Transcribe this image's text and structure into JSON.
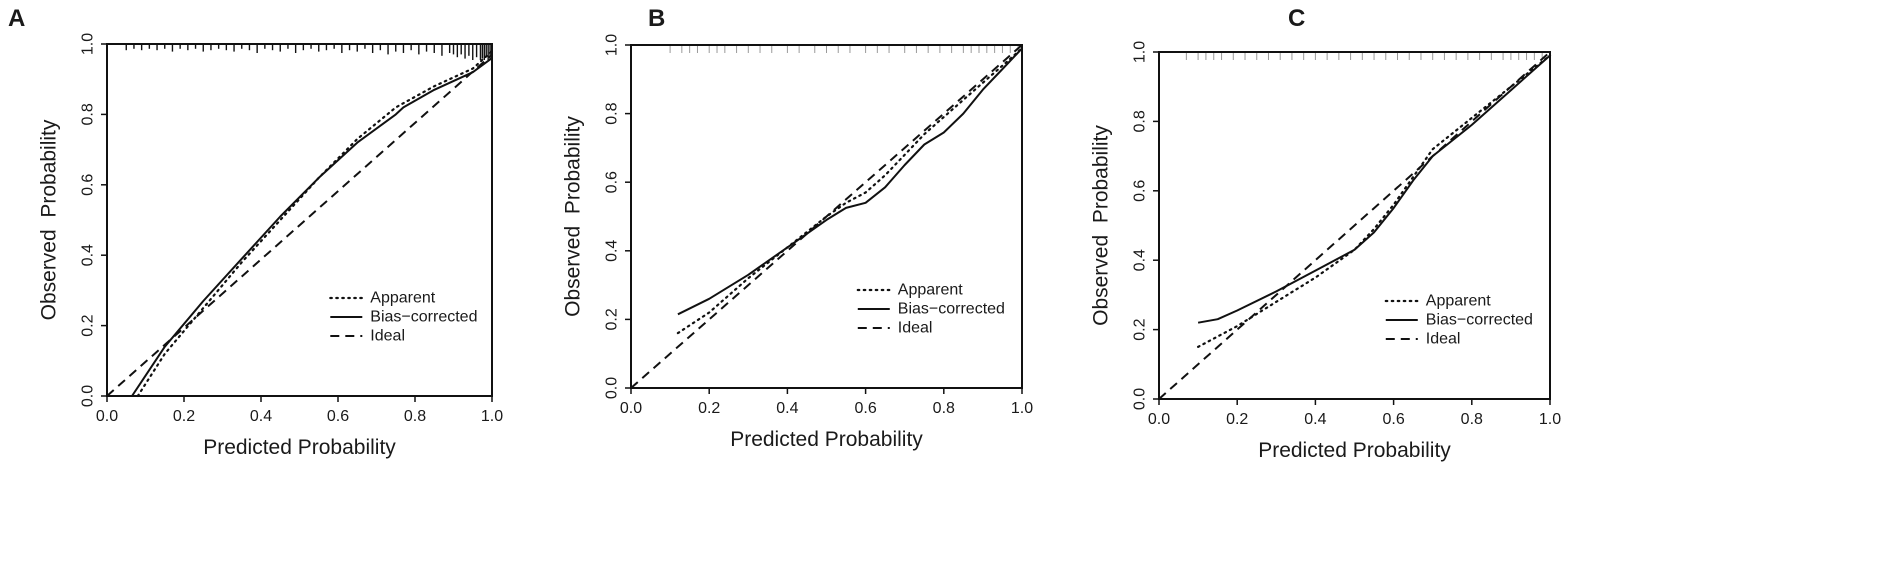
{
  "figure": {
    "panel_letters": [
      "A",
      "B",
      "C"
    ]
  },
  "chart_data": [
    {
      "type": "line",
      "panel": "A",
      "xlabel": "Predicted Probability",
      "ylabel": "Observed  Probability",
      "xlim": [
        0,
        1
      ],
      "ylim": [
        0,
        1
      ],
      "xticks": [
        "0.0",
        "0.2",
        "0.4",
        "0.6",
        "0.8",
        "1.0"
      ],
      "yticks": [
        "0.0",
        "0.2",
        "0.4",
        "0.6",
        "0.8",
        "1.0"
      ],
      "legend": {
        "position": "bottom-right",
        "entries": [
          "Apparent",
          "Bias−corrected",
          "Ideal"
        ]
      },
      "series": [
        {
          "name": "Apparent",
          "style": "dotted",
          "x": [
            0.08,
            0.15,
            0.25,
            0.35,
            0.45,
            0.55,
            0.65,
            0.75,
            0.85,
            0.95,
            1.0
          ],
          "y": [
            0.0,
            0.12,
            0.25,
            0.38,
            0.5,
            0.62,
            0.73,
            0.82,
            0.88,
            0.93,
            0.98
          ]
        },
        {
          "name": "Bias−corrected",
          "style": "solid",
          "x": [
            0.065,
            0.15,
            0.25,
            0.35,
            0.45,
            0.55,
            0.65,
            0.75,
            0.77,
            0.85,
            0.95,
            1.0
          ],
          "y": [
            0.0,
            0.14,
            0.27,
            0.39,
            0.51,
            0.62,
            0.72,
            0.8,
            0.82,
            0.87,
            0.92,
            0.96
          ]
        },
        {
          "name": "Ideal",
          "style": "dashed",
          "x": [
            0.0,
            1.0
          ],
          "y": [
            0.0,
            0.97
          ]
        }
      ],
      "rug": {
        "style": "dense",
        "x": [
          0.05,
          0.07,
          0.09,
          0.11,
          0.13,
          0.15,
          0.17,
          0.19,
          0.21,
          0.23,
          0.25,
          0.27,
          0.29,
          0.31,
          0.33,
          0.35,
          0.37,
          0.39,
          0.41,
          0.43,
          0.45,
          0.47,
          0.49,
          0.51,
          0.53,
          0.55,
          0.57,
          0.59,
          0.61,
          0.63,
          0.65,
          0.67,
          0.69,
          0.71,
          0.73,
          0.75,
          0.77,
          0.79,
          0.81,
          0.83,
          0.85,
          0.87,
          0.89,
          0.9,
          0.91,
          0.92,
          0.93,
          0.94,
          0.95,
          0.96,
          0.97,
          0.975,
          0.98,
          0.985,
          0.99,
          0.995
        ],
        "h": [
          0.3,
          0.2,
          0.3,
          0.2,
          0.3,
          0.2,
          0.4,
          0.2,
          0.3,
          0.2,
          0.4,
          0.3,
          0.2,
          0.3,
          0.4,
          0.2,
          0.3,
          0.5,
          0.2,
          0.3,
          0.4,
          0.2,
          0.5,
          0.3,
          0.2,
          0.4,
          0.3,
          0.2,
          0.5,
          0.3,
          0.4,
          0.2,
          0.5,
          0.3,
          0.6,
          0.4,
          0.5,
          0.3,
          0.6,
          0.4,
          0.5,
          0.7,
          0.5,
          0.6,
          0.8,
          0.6,
          0.9,
          0.7,
          1.0,
          0.8,
          1.0,
          0.9,
          1.0,
          0.8,
          1.0,
          0.9
        ]
      }
    },
    {
      "type": "line",
      "panel": "B",
      "xlabel": "Predicted Probability",
      "ylabel": "Observed  Probability",
      "xlim": [
        0,
        1
      ],
      "ylim": [
        0,
        1
      ],
      "xticks": [
        "0.0",
        "0.2",
        "0.4",
        "0.6",
        "0.8",
        "1.0"
      ],
      "yticks": [
        "0.0",
        "0.2",
        "0.4",
        "0.6",
        "0.8",
        "1.0"
      ],
      "legend": {
        "position": "bottom-right",
        "entries": [
          "Apparent",
          "Bias−corrected",
          "Ideal"
        ]
      },
      "series": [
        {
          "name": "Apparent",
          "style": "dotted",
          "x": [
            0.12,
            0.2,
            0.3,
            0.4,
            0.5,
            0.55,
            0.6,
            0.65,
            0.7,
            0.75,
            0.8,
            0.85,
            0.9,
            0.95,
            1.0
          ],
          "y": [
            0.16,
            0.22,
            0.32,
            0.41,
            0.5,
            0.54,
            0.57,
            0.62,
            0.68,
            0.74,
            0.79,
            0.84,
            0.89,
            0.94,
            0.99
          ]
        },
        {
          "name": "Bias−corrected",
          "style": "solid",
          "x": [
            0.12,
            0.2,
            0.3,
            0.4,
            0.5,
            0.55,
            0.6,
            0.65,
            0.7,
            0.75,
            0.8,
            0.85,
            0.9,
            0.95,
            1.0
          ],
          "y": [
            0.215,
            0.26,
            0.33,
            0.41,
            0.49,
            0.525,
            0.54,
            0.585,
            0.65,
            0.71,
            0.745,
            0.8,
            0.87,
            0.93,
            0.99
          ]
        },
        {
          "name": "Ideal",
          "style": "dashed",
          "x": [
            0.0,
            1.0
          ],
          "y": [
            0.0,
            1.0
          ]
        }
      ],
      "rug": {
        "style": "sparse",
        "x": [
          0.1,
          0.13,
          0.15,
          0.17,
          0.2,
          0.22,
          0.24,
          0.27,
          0.3,
          0.33,
          0.36,
          0.4,
          0.43,
          0.47,
          0.5,
          0.53,
          0.56,
          0.6,
          0.63,
          0.66,
          0.7,
          0.73,
          0.76,
          0.79,
          0.82,
          0.85,
          0.87,
          0.89,
          0.91,
          0.93,
          0.95,
          0.97,
          0.99
        ]
      }
    },
    {
      "type": "line",
      "panel": "C",
      "xlabel": "Predicted Probability",
      "ylabel": "Observed  Probability",
      "xlim": [
        0,
        1
      ],
      "ylim": [
        0,
        1
      ],
      "xticks": [
        "0.0",
        "0.2",
        "0.4",
        "0.6",
        "0.8",
        "1.0"
      ],
      "yticks": [
        "0.0",
        "0.2",
        "0.4",
        "0.6",
        "0.8",
        "1.0"
      ],
      "legend": {
        "position": "bottom-right",
        "entries": [
          "Apparent",
          "Bias−corrected",
          "Ideal"
        ]
      },
      "series": [
        {
          "name": "Apparent",
          "style": "dotted",
          "x": [
            0.1,
            0.2,
            0.3,
            0.4,
            0.5,
            0.55,
            0.6,
            0.65,
            0.7,
            0.8,
            0.9,
            1.0
          ],
          "y": [
            0.15,
            0.21,
            0.28,
            0.35,
            0.43,
            0.49,
            0.56,
            0.64,
            0.72,
            0.81,
            0.9,
            0.99
          ]
        },
        {
          "name": "Bias−corrected",
          "style": "solid",
          "x": [
            0.1,
            0.15,
            0.2,
            0.3,
            0.4,
            0.5,
            0.55,
            0.6,
            0.65,
            0.7,
            0.8,
            0.9,
            1.0
          ],
          "y": [
            0.22,
            0.23,
            0.255,
            0.31,
            0.37,
            0.43,
            0.48,
            0.55,
            0.63,
            0.7,
            0.79,
            0.89,
            0.99
          ]
        },
        {
          "name": "Ideal",
          "style": "dashed",
          "x": [
            0.0,
            1.0
          ],
          "y": [
            0.0,
            1.0
          ]
        }
      ],
      "rug": {
        "style": "sparse",
        "x": [
          0.07,
          0.1,
          0.12,
          0.14,
          0.16,
          0.19,
          0.22,
          0.25,
          0.28,
          0.31,
          0.34,
          0.37,
          0.4,
          0.43,
          0.46,
          0.49,
          0.52,
          0.55,
          0.58,
          0.61,
          0.64,
          0.67,
          0.7,
          0.73,
          0.76,
          0.79,
          0.82,
          0.85,
          0.88,
          0.9,
          0.92,
          0.94,
          0.96,
          0.98
        ]
      }
    }
  ]
}
